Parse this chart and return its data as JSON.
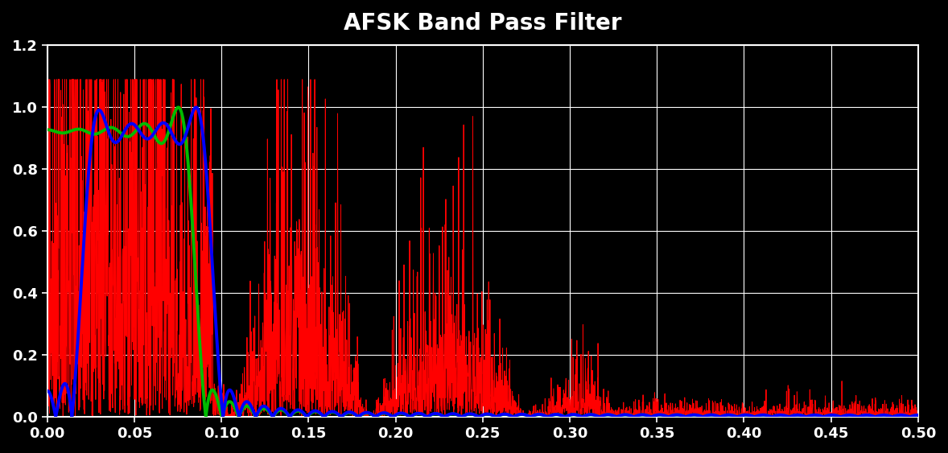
{
  "title": "AFSK Band Pass Filter",
  "title_color": "#ffffff",
  "title_fontsize": 20,
  "bg_color": "#000000",
  "axes_bg_color": "#000000",
  "grid_color": "#ffffff",
  "tick_color": "#ffffff",
  "spine_color": "#ffffff",
  "xlim": [
    0.0,
    0.5
  ],
  "ylim": [
    0.0,
    1.2
  ],
  "xticks": [
    0.0,
    0.05,
    0.1,
    0.15,
    0.2,
    0.25,
    0.3,
    0.35,
    0.4,
    0.45,
    0.5
  ],
  "yticks": [
    0,
    0.2,
    0.4,
    0.6,
    0.8,
    1.0,
    1.2
  ],
  "red_color": "#ff0000",
  "blue_color": "#0000ff",
  "green_color": "#00bb00",
  "red_linewidth": 0.7,
  "blue_linewidth": 2.8,
  "green_linewidth": 2.8,
  "n_points": 4000,
  "signal_noise_seed": 42
}
